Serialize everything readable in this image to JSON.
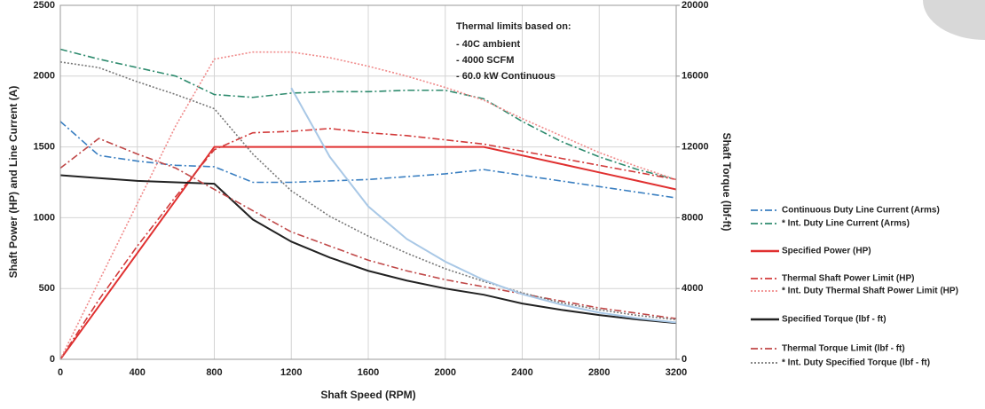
{
  "chart_data": {
    "type": "line",
    "xlabel": "Shaft Speed (RPM)",
    "ylabel": "Shaft Power (HP) and  Line Current (A)",
    "y2label": "Shaft Torque (lbf-ft)",
    "annotations": [
      "Thermal limits based on:",
      "- 40C ambient",
      "- 4000 SCFM",
      "- 60.0 kW Continuous"
    ],
    "xlim": [
      0,
      3200
    ],
    "xticks": [
      0,
      400,
      800,
      1200,
      1600,
      2000,
      2400,
      2800,
      3200
    ],
    "ylim": [
      0,
      2500
    ],
    "yticks": [
      0,
      500,
      1000,
      1500,
      2000,
      2500
    ],
    "y2lim": [
      0,
      20000
    ],
    "y2ticks": [
      0,
      4000,
      8000,
      12000,
      16000,
      20000
    ],
    "grid": true,
    "legend": "right",
    "x": [
      0,
      200,
      400,
      600,
      800,
      1000,
      1200,
      1400,
      1600,
      1800,
      2000,
      2200,
      2400,
      2600,
      2800,
      3000,
      3200
    ],
    "series": [
      {
        "name": "Continuous Duty Line Current (Arms)",
        "color": "#3a7fc1",
        "dash": "dashdot",
        "values": [
          1680,
          1440,
          1400,
          1370,
          1360,
          1250,
          1250,
          1260,
          1270,
          1290,
          1310,
          1340,
          1300,
          1260,
          1220,
          1180,
          1140
        ]
      },
      {
        "name": "* Int. Duty Line Current (Arms)",
        "color": "#2e8b6e",
        "dash": "dashdot",
        "values": [
          2190,
          2120,
          2060,
          2000,
          1870,
          1850,
          1880,
          1890,
          1890,
          1900,
          1900,
          1840,
          1680,
          1540,
          1430,
          1340,
          1270
        ]
      },
      {
        "name": "Specified Power (HP)",
        "color": "#e03030",
        "dash": "solid",
        "values": [
          0,
          375,
          750,
          1125,
          1500,
          1500,
          1500,
          1500,
          1500,
          1500,
          1500,
          1500,
          1440,
          1380,
          1320,
          1260,
          1200
        ]
      },
      {
        "name": "Thermal Shaft Power Limit (HP)",
        "color": "#d23a3a",
        "dash": "dashdot",
        "values": [
          0,
          420,
          800,
          1150,
          1480,
          1600,
          1610,
          1630,
          1600,
          1580,
          1550,
          1520,
          1470,
          1420,
          1370,
          1320,
          1270
        ]
      },
      {
        "name": "* Int. Duty Thermal Shaft Power Limit (HP)",
        "color": "#f08a8a",
        "dash": "dotted",
        "values": [
          0,
          550,
          1100,
          1650,
          2120,
          2170,
          2170,
          2130,
          2070,
          2000,
          1920,
          1830,
          1700,
          1580,
          1460,
          1360,
          1270
        ]
      },
      {
        "name": "Specified Torque (lbf - ft)",
        "color": "#222222",
        "dash": "solid",
        "axis": "y2",
        "values": [
          10400,
          10240,
          10080,
          10000,
          9920,
          7900,
          6650,
          5750,
          5000,
          4450,
          4000,
          3650,
          3150,
          2800,
          2500,
          2250,
          2050
        ]
      },
      {
        "name": "Thermal Torque Limit (lbf - ft)",
        "color": "#c04848",
        "dash": "dashdot",
        "axis": "y2",
        "values": [
          10800,
          12480,
          11600,
          10800,
          9600,
          8400,
          7200,
          6400,
          5600,
          5000,
          4500,
          4100,
          3700,
          3300,
          2900,
          2600,
          2300
        ]
      },
      {
        "name": "* Int. Duty Specified Torque (lbf - ft)",
        "color": "#777777",
        "dash": "dotted",
        "axis": "y2",
        "values": [
          16800,
          16480,
          15680,
          14960,
          14160,
          11600,
          9520,
          8080,
          6960,
          6000,
          5120,
          4400,
          3760,
          3200,
          2800,
          2480,
          2240
        ]
      },
      {
        "color": "#a9c8e6",
        "dash": "solid",
        "axis": "y2",
        "values": [
          null,
          null,
          null,
          null,
          null,
          null,
          15330,
          11440,
          8640,
          6800,
          5520,
          4480,
          3680,
          3100,
          2640,
          2320,
          2080
        ]
      }
    ]
  }
}
